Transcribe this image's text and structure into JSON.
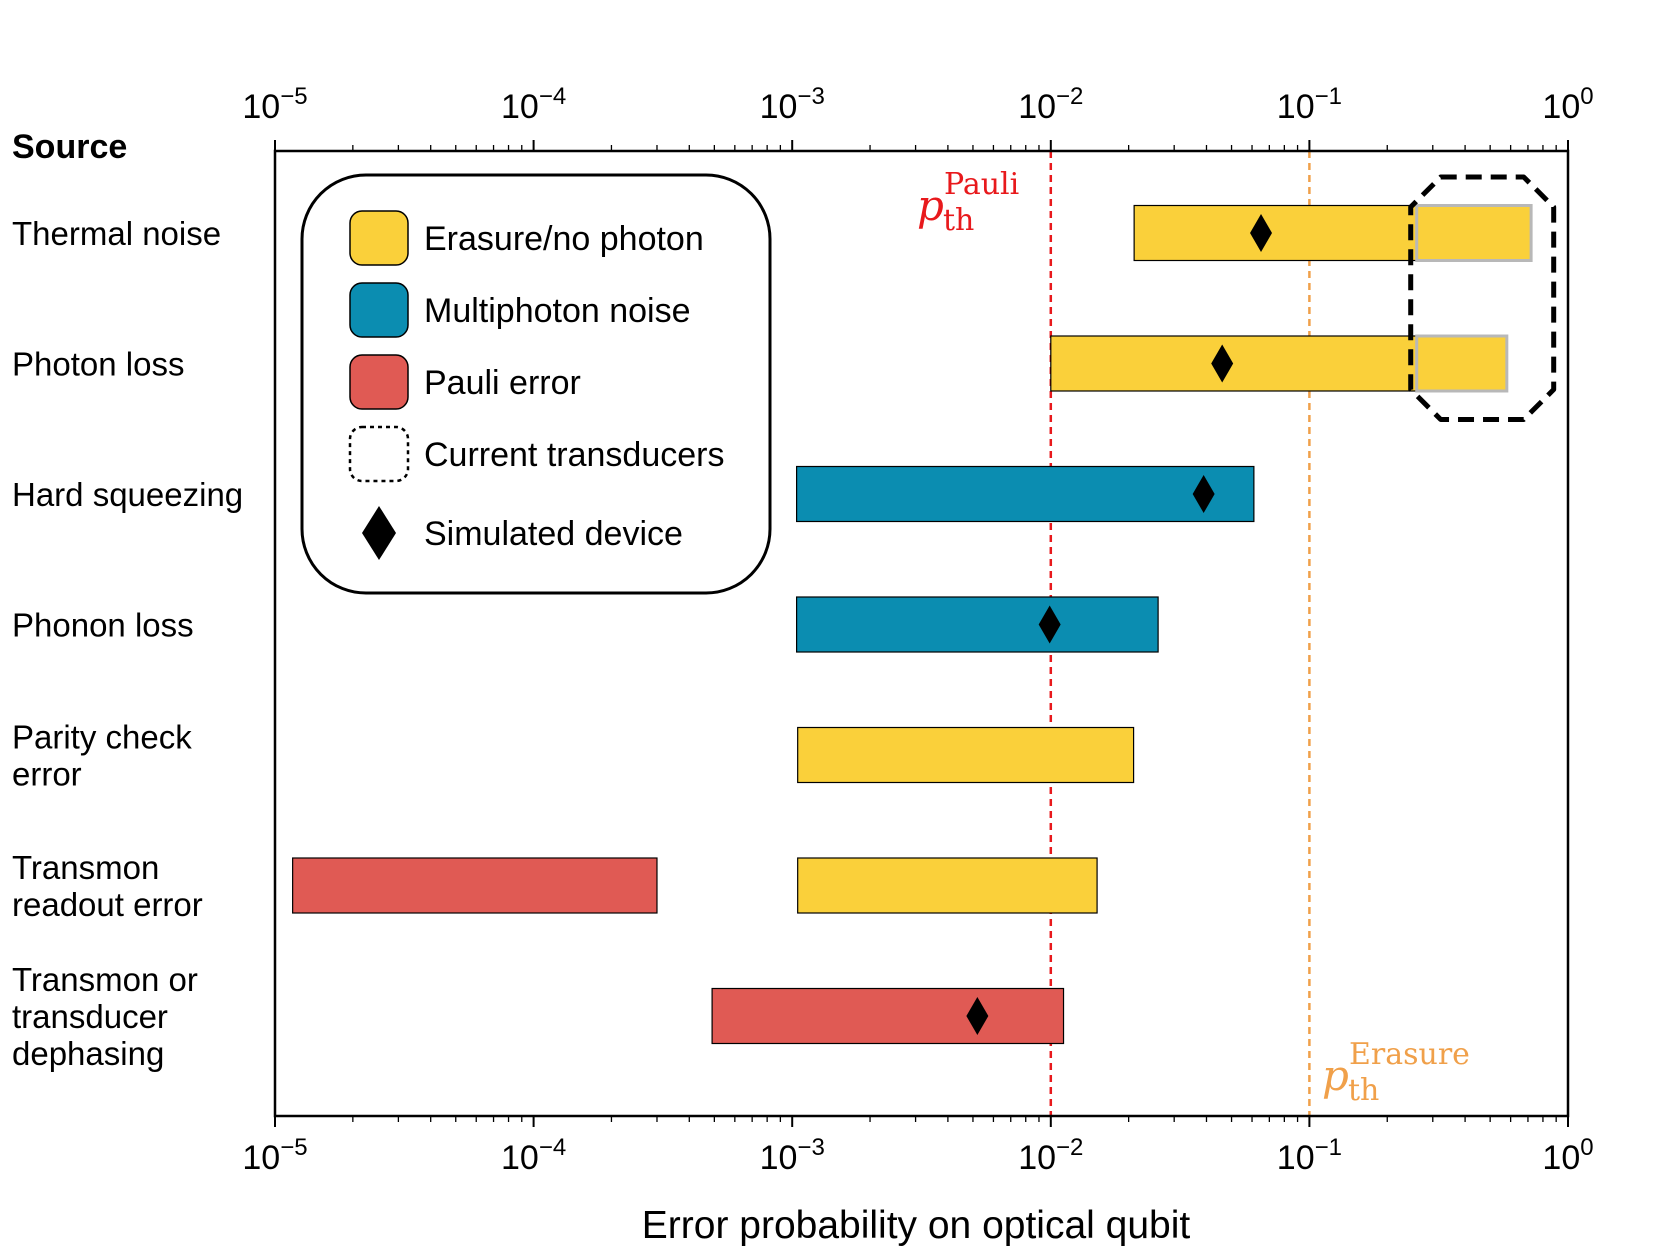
{
  "chart_data": {
    "type": "bar",
    "orientation": "horizontal-range",
    "x_scale": "log",
    "xlim": [
      1e-05,
      1
    ],
    "xlabel": "Error probability on optical qubit",
    "source_header": "Source",
    "tick_labels": [
      {
        "base": "10",
        "exp": "−5",
        "value": 1e-05
      },
      {
        "base": "10",
        "exp": "−4",
        "value": 0.0001
      },
      {
        "base": "10",
        "exp": "−3",
        "value": 0.001
      },
      {
        "base": "10",
        "exp": "−2",
        "value": 0.01
      },
      {
        "base": "10",
        "exp": "−1",
        "value": 0.1
      },
      {
        "base": "10",
        "exp": "0",
        "value": 1
      }
    ],
    "categories": [
      [
        "Thermal noise"
      ],
      [
        "Photon loss"
      ],
      [
        "Hard squeezing"
      ],
      [
        "Phonon loss"
      ],
      [
        "Parity check",
        "error"
      ],
      [
        "Transmon",
        "readout error"
      ],
      [
        "Transmon or",
        "transducer",
        "dephasing"
      ]
    ],
    "bars": [
      {
        "row": 0,
        "kind": "erasure",
        "low": 0.021,
        "high": 0.72,
        "simulated": 0.065
      },
      {
        "row": 1,
        "kind": "erasure",
        "low": 0.01,
        "high": 0.58,
        "simulated": 0.046
      },
      {
        "row": 2,
        "kind": "multiphoton",
        "low": 0.00104,
        "high": 0.061,
        "simulated": 0.039
      },
      {
        "row": 3,
        "kind": "multiphoton",
        "low": 0.00104,
        "high": 0.026,
        "simulated": 0.0099
      },
      {
        "row": 4,
        "kind": "erasure",
        "low": 0.00105,
        "high": 0.0209
      },
      {
        "row": 5,
        "kind": "pauli",
        "low": 1.17e-05,
        "high": 0.0003
      },
      {
        "row": 5,
        "kind": "erasure",
        "low": 0.00105,
        "high": 0.0151
      },
      {
        "row": 6,
        "kind": "pauli",
        "low": 0.00049,
        "high": 0.0112,
        "simulated": 0.0052
      }
    ],
    "current_transducers": {
      "rows": [
        0,
        1
      ],
      "low": 0.26,
      "high": 0.75
    },
    "thresholds": [
      {
        "name": "pauli",
        "value": 0.01,
        "symbol": "p",
        "subscript": "th",
        "superscript": "Pauli",
        "color": "#e8191c"
      },
      {
        "name": "erasure",
        "value": 0.1,
        "symbol": "p",
        "subscript": "th",
        "superscript": "Erasure",
        "color": "#f0a04a"
      }
    ],
    "legend": {
      "position": "upper-left",
      "entries": [
        {
          "key": "erasure",
          "label": "Erasure/no photon"
        },
        {
          "key": "multiphoton",
          "label": "Multiphoton noise"
        },
        {
          "key": "pauli",
          "label": "Pauli error"
        },
        {
          "key": "transducers",
          "label": "Current transducers"
        },
        {
          "key": "simulated",
          "label": "Simulated device"
        }
      ]
    },
    "colors": {
      "erasure": "#fad03a",
      "multiphoton": "#0b8db1",
      "pauli": "#e05a54",
      "marker": "#000000",
      "axis": "#000000"
    }
  }
}
